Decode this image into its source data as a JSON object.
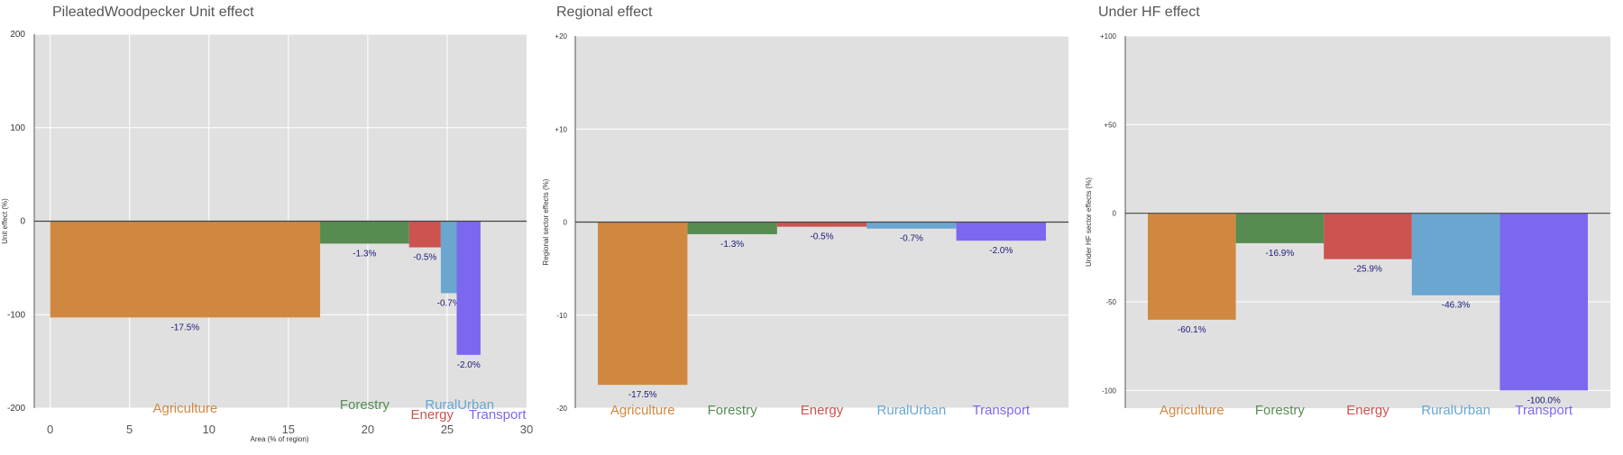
{
  "colors": {
    "Agriculture": "#d08840",
    "Forestry": "#568c52",
    "Energy": "#cc5350",
    "RuralUrban": "#6aa6d0",
    "Transport": "#7b68ee",
    "panel_bg": "#e0e0e0",
    "value_label": "#1a1a7a",
    "title": "#555555"
  },
  "chart_data": [
    {
      "type": "bar",
      "title": "PileatedWoodpecker Unit effect",
      "ylabel": "Unit effect (%)",
      "xlabel": "Area (% of region)",
      "ylim": [
        -200,
        200
      ],
      "xlim": [
        -1,
        30
      ],
      "yticks": [
        "200",
        "100",
        "0",
        "-100",
        "-200"
      ],
      "ytick_values": [
        200,
        100,
        0,
        -100,
        -200
      ],
      "xticks": [
        "0",
        "5",
        "10",
        "15",
        "20",
        "25",
        "30"
      ],
      "xtick_values": [
        0,
        5,
        10,
        15,
        20,
        25,
        30
      ],
      "bars": [
        {
          "category": "Agriculture",
          "x_start": 0,
          "x_end": 17,
          "value": -103,
          "label": "-17.5%"
        },
        {
          "category": "Forestry",
          "x_start": 17,
          "x_end": 22.6,
          "value": -24,
          "label": "-1.3%"
        },
        {
          "category": "Energy",
          "x_start": 22.6,
          "x_end": 24.6,
          "value": -28,
          "label": "-0.5%"
        },
        {
          "category": "RuralUrban",
          "x_start": 24.6,
          "x_end": 25.6,
          "value": -77,
          "label": "-0.7%"
        },
        {
          "category": "Transport",
          "x_start": 25.6,
          "x_end": 27.1,
          "value": -143,
          "label": "-2.0%"
        }
      ],
      "category_labels": [
        "Agriculture",
        "Forestry",
        "Energy",
        "RuralUrban",
        "Transport"
      ]
    },
    {
      "type": "bar",
      "title": "Regional effect",
      "ylabel": "Regional sector effects (%)",
      "ylim": [
        -20,
        20
      ],
      "yticks": [
        "+20",
        "+10",
        "0",
        "-10",
        "-20"
      ],
      "ytick_values": [
        20,
        10,
        0,
        -10,
        -20
      ],
      "categories": [
        "Agriculture",
        "Forestry",
        "Energy",
        "RuralUrban",
        "Transport"
      ],
      "values": [
        -17.5,
        -1.3,
        -0.5,
        -0.7,
        -2.0
      ],
      "labels": [
        "-17.5%",
        "-1.3%",
        "-0.5%",
        "-0.7%",
        "-2.0%"
      ]
    },
    {
      "type": "bar",
      "title": "Under HF effect",
      "ylabel": "Under HF sector effects (%)",
      "ylim": [
        -110,
        100
      ],
      "yticks": [
        "+100",
        "+50",
        "0",
        "-50",
        "-100"
      ],
      "ytick_values": [
        100,
        50,
        0,
        -50,
        -100
      ],
      "categories": [
        "Agriculture",
        "Forestry",
        "Energy",
        "RuralUrban",
        "Transport"
      ],
      "values": [
        -60.1,
        -16.9,
        -25.9,
        -46.3,
        -100.0
      ],
      "labels": [
        "-60.1%",
        "-16.9%",
        "-25.9%",
        "-46.3%",
        "-100.0%"
      ]
    }
  ]
}
